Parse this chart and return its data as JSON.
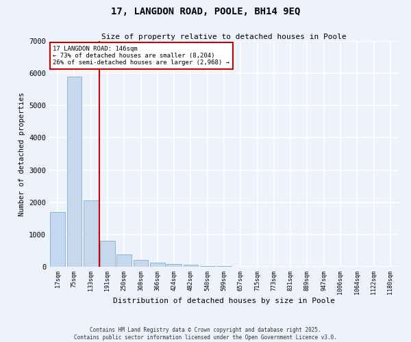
{
  "title1": "17, LANGDON ROAD, POOLE, BH14 9EQ",
  "title2": "Size of property relative to detached houses in Poole",
  "xlabel": "Distribution of detached houses by size in Poole",
  "ylabel": "Number of detached properties",
  "categories": [
    "17sqm",
    "75sqm",
    "133sqm",
    "191sqm",
    "250sqm",
    "308sqm",
    "366sqm",
    "424sqm",
    "482sqm",
    "540sqm",
    "599sqm",
    "657sqm",
    "715sqm",
    "773sqm",
    "831sqm",
    "889sqm",
    "947sqm",
    "1006sqm",
    "1064sqm",
    "1122sqm",
    "1180sqm"
  ],
  "values": [
    1700,
    5900,
    2050,
    800,
    380,
    220,
    130,
    80,
    55,
    30,
    20,
    10,
    5,
    2,
    1,
    0,
    0,
    0,
    0,
    0,
    0
  ],
  "bar_color": "#c5d8ed",
  "bar_edge_color": "#7aafd4",
  "annotation_box_color": "#ffffff",
  "annotation_box_edge": "#cc0000",
  "vline_color": "#cc0000",
  "vline_x_index": 2,
  "annotation_text_line1": "17 LANGDON ROAD: 146sqm",
  "annotation_text_line2": "← 73% of detached houses are smaller (8,204)",
  "annotation_text_line3": "26% of semi-detached houses are larger (2,968) →",
  "background_color": "#eef2fa",
  "grid_color": "#ffffff",
  "ylim": [
    0,
    7000
  ],
  "yticks": [
    0,
    1000,
    2000,
    3000,
    4000,
    5000,
    6000,
    7000
  ],
  "footer_line1": "Contains HM Land Registry data © Crown copyright and database right 2025.",
  "footer_line2": "Contains public sector information licensed under the Open Government Licence v3.0."
}
